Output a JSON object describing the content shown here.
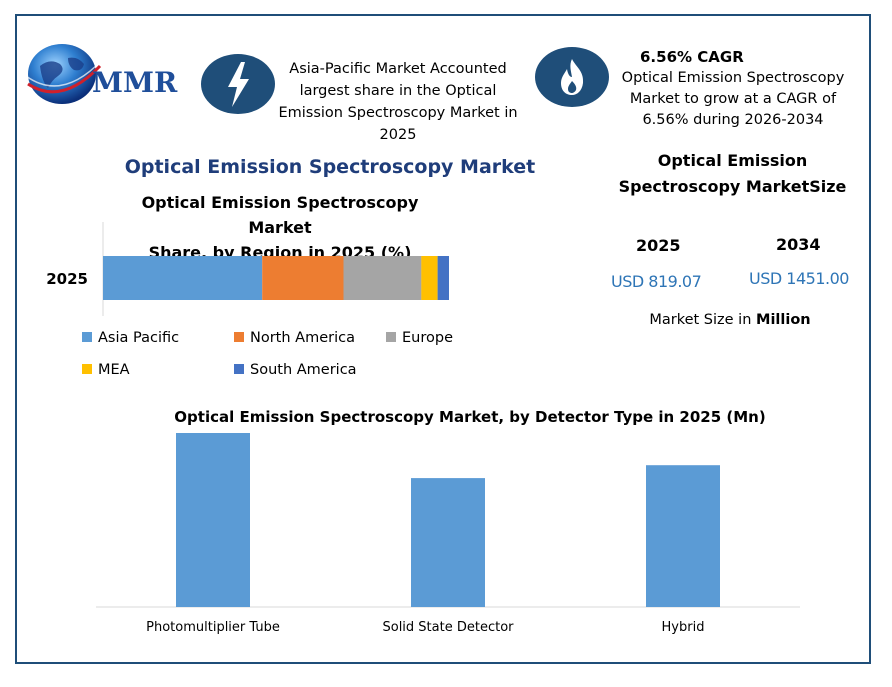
{
  "logo": {
    "text": "MMR"
  },
  "info1": {
    "lines": [
      "Asia-Pacific Market Accounted",
      "largest share in the Optical",
      "Emission Spectroscopy Market in",
      "2025"
    ]
  },
  "info2": {
    "title": "6.56% CAGR",
    "lines": [
      "Optical Emission Spectroscopy",
      "Market to grow at a CAGR of",
      "6.56% during 2026-2034"
    ]
  },
  "main_title": "Optical Emission Spectroscopy Market",
  "share_title_lines": [
    "Optical Emission Spectroscopy Market",
    "Share, by Region in 2025 (%)"
  ],
  "size": {
    "title_lines": [
      "Optical Emission",
      "Spectroscopy MarketSize"
    ],
    "year1": "2025",
    "year2": "2034",
    "value1": "USD 819.07",
    "value2": "USD 1451.00",
    "unit_prefix": "Market Size in ",
    "unit_bold": "Million"
  },
  "bar_title": "Optical Emission Spectroscopy Market, by Detector Type in 2025 (Mn)",
  "colors": {
    "asia": "#5b9bd5",
    "north_america": "#ed7d31",
    "europe": "#a5a5a5",
    "mea": "#ffc000",
    "south_america": "#4472c4",
    "frame": "#1f4e79",
    "icon_bg": "#1f4e79"
  },
  "icons": {
    "info1": "lightning-bolt-icon",
    "info2": "flame-icon",
    "logo": "globe-icon"
  },
  "chart_data": [
    {
      "type": "bar",
      "orientation": "horizontal-stacked",
      "title": "Optical Emission Spectroscopy Market Share, by Region in 2025 (%)",
      "categories": [
        "2025"
      ],
      "series": [
        {
          "name": "Asia Pacific",
          "values": [
            46
          ]
        },
        {
          "name": "North America",
          "values": [
            23.5
          ]
        },
        {
          "name": "Europe",
          "values": [
            22.5
          ]
        },
        {
          "name": "MEA",
          "values": [
            4.7
          ]
        },
        {
          "name": "South America",
          "values": [
            3.3
          ]
        }
      ],
      "xlim": [
        0,
        100
      ],
      "legend": "bottom"
    },
    {
      "type": "bar",
      "title": "Optical Emission Spectroscopy Market, by Detector Type in 2025 (Mn)",
      "categories": [
        "Photomultiplier Tube",
        "Solid State Detector",
        "Hybrid"
      ],
      "values": [
        162,
        120,
        132
      ],
      "ylim": [
        0,
        175
      ],
      "grid": false
    }
  ]
}
